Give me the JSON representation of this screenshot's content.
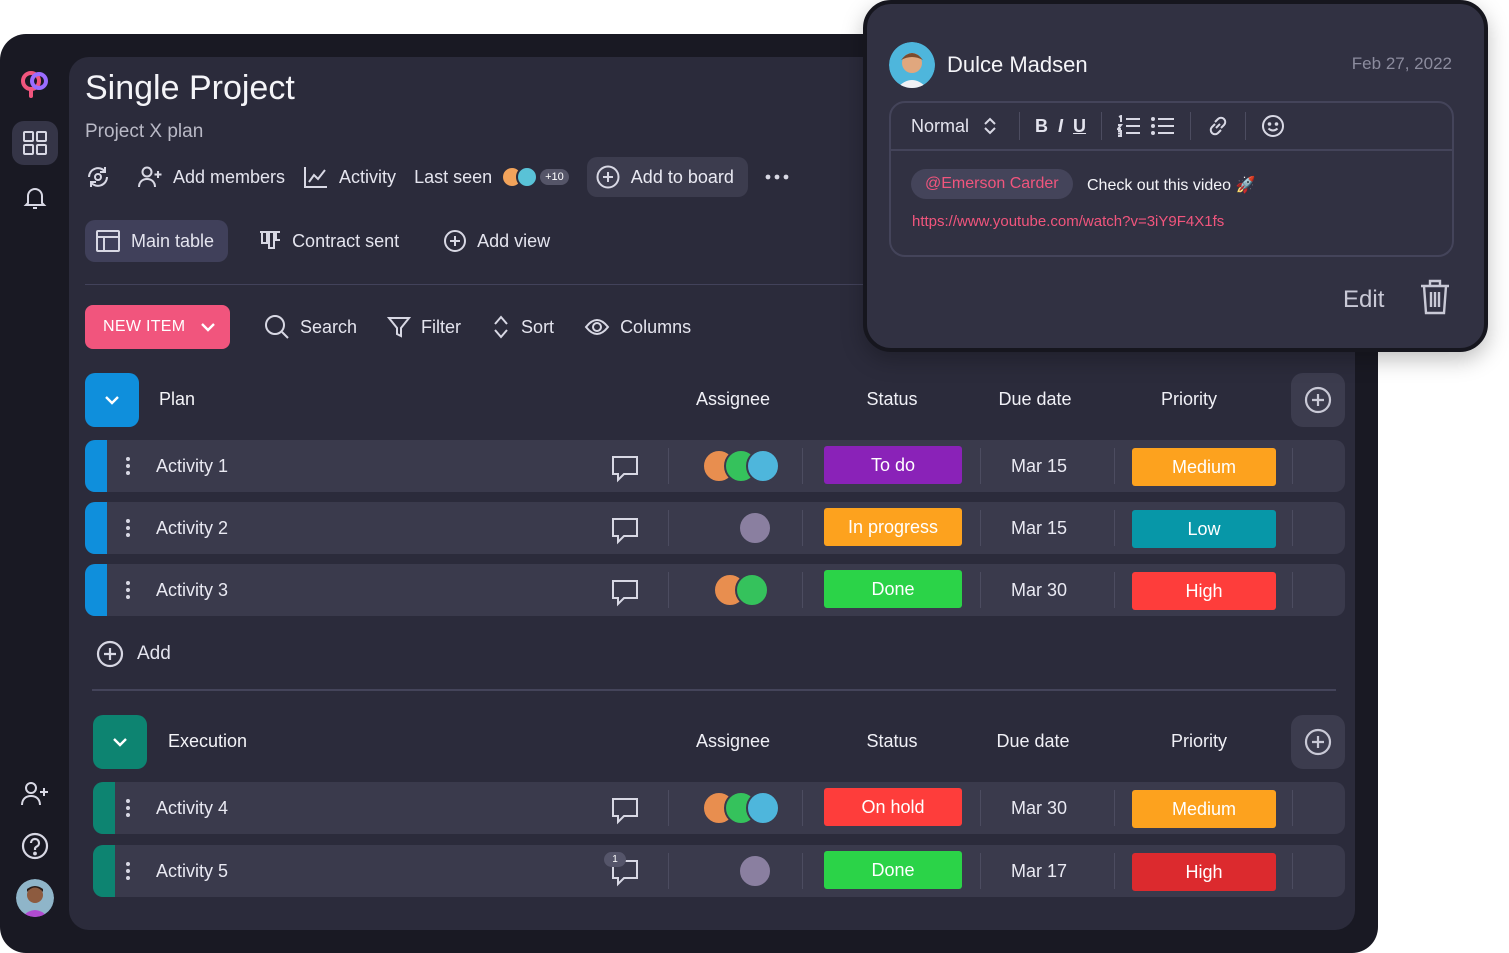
{
  "project": {
    "title": "Single Project",
    "subtitle": "Project X plan"
  },
  "toolbar": {
    "add_members": "Add members",
    "activity": "Activity",
    "last_seen": "Last seen",
    "more_count": "+10",
    "add_to_board": "Add to board"
  },
  "views": {
    "main_table": "Main table",
    "contract_sent": "Contract sent",
    "add_view": "Add view"
  },
  "actions": {
    "new_item": "NEW ITEM",
    "search": "Search",
    "filter": "Filter",
    "sort": "Sort",
    "columns": "Columns"
  },
  "columns": {
    "assignee": "Assignee",
    "status": "Status",
    "due_date": "Due date",
    "priority": "Priority"
  },
  "groups": [
    {
      "name": "Plan",
      "color": "#0f8fdc",
      "rows": [
        {
          "name": "Activity 1",
          "status": "To do",
          "status_color": "#8a22b8",
          "due": "Mar 15",
          "priority": "Medium",
          "priority_color": "#fda21e"
        },
        {
          "name": "Activity 2",
          "status": "In progress",
          "status_color": "#fda21e",
          "due": "Mar 15",
          "priority": "Low",
          "priority_color": "#0797a8"
        },
        {
          "name": "Activity 3",
          "status": "Done",
          "status_color": "#2bd348",
          "due": "Mar 30",
          "priority": "High",
          "priority_color": "#fe3d3b"
        }
      ],
      "add_label": "Add"
    },
    {
      "name": "Execution",
      "color": "#0d8471",
      "rows": [
        {
          "name": "Activity 4",
          "status": "On hold",
          "status_color": "#fe3d3b",
          "due": "Mar 30",
          "priority": "Medium",
          "priority_color": "#fda21e"
        },
        {
          "name": "Activity 5",
          "status": "Done",
          "status_color": "#2bd348",
          "due": "Mar 17",
          "priority": "High",
          "priority_color": "#dc2a2e",
          "comment_count": "1"
        }
      ]
    }
  ],
  "comment": {
    "author": "Dulce Madsen",
    "date": "Feb 27, 2022",
    "format": "Normal",
    "mention": "@Emerson Carder",
    "message": "Check out this video 🚀",
    "link": "https://www.youtube.com/watch?v=3iY9F4X1fs",
    "edit": "Edit"
  },
  "icons": [
    "logo-icon",
    "dashboard-icon",
    "bell-icon",
    "add-user-icon",
    "help-icon",
    "trash-icon",
    "comment-icon"
  ],
  "accent": "#f1557d"
}
